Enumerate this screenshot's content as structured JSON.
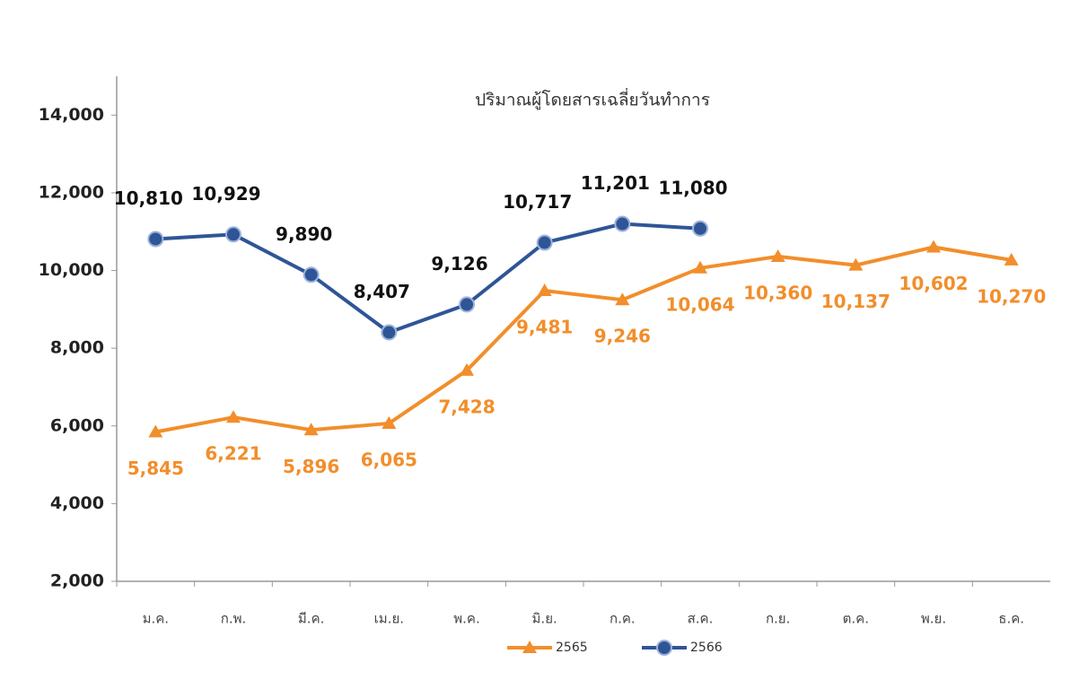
{
  "chart_data": {
    "type": "line",
    "title": "ปริมาณผู้โดยสารเฉลี่ยวันทำการ",
    "categories": [
      "ม.ค.",
      "ก.พ.",
      "มี.ค.",
      "เม.ย.",
      "พ.ค.",
      "มิ.ย.",
      "ก.ค.",
      "ส.ค.",
      "ก.ย.",
      "ต.ค.",
      "พ.ย.",
      "ธ.ค."
    ],
    "series": [
      {
        "name": "2565",
        "color": "#f28e2b",
        "marker": "triangle",
        "values": [
          5845,
          6221,
          5896,
          6065,
          7428,
          9481,
          9246,
          10064,
          10360,
          10137,
          10602,
          10270
        ],
        "value_labels": [
          "5,845",
          "6,221",
          "5,896",
          "6,065",
          "7,428",
          "9,481",
          "9,246",
          "10,064",
          "10,360",
          "10,137",
          "10,602",
          "10,270"
        ]
      },
      {
        "name": "2566",
        "color": "#2f5597",
        "marker": "circle",
        "values": [
          10810,
          10929,
          9890,
          8407,
          9126,
          10717,
          11201,
          11080,
          null,
          null,
          null,
          null
        ],
        "value_labels": [
          "10,810",
          "10,929",
          "9,890",
          "8,407",
          "9,126",
          "10,717",
          "11,201",
          "11,080",
          null,
          null,
          null,
          null
        ]
      }
    ],
    "ylim": [
      2000,
      15000
    ],
    "yticks": [
      {
        "value": 2000,
        "label": "2,000"
      },
      {
        "value": 4000,
        "label": "4,000"
      },
      {
        "value": 6000,
        "label": "6,000"
      },
      {
        "value": 8000,
        "label": "8,000"
      },
      {
        "value": 10000,
        "label": "10,000"
      },
      {
        "value": 12000,
        "label": "12,000"
      },
      {
        "value": 14000,
        "label": "14,000"
      }
    ],
    "grid": false,
    "legend": "bottom"
  }
}
